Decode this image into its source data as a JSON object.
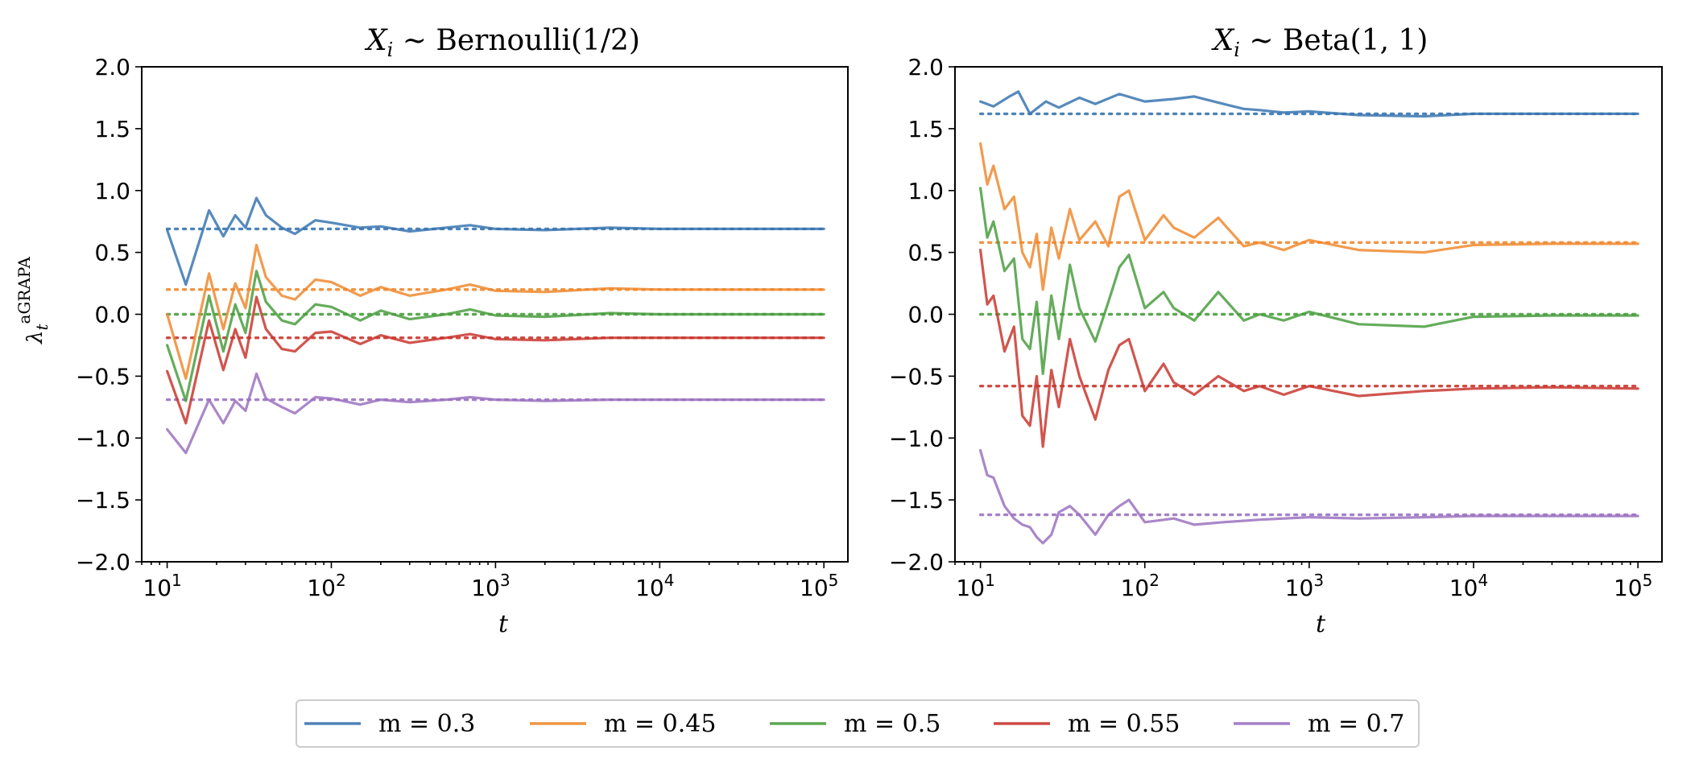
{
  "chart_data": [
    {
      "type": "line",
      "title_prefix": "X",
      "title_sub": "i",
      "title_rest": " ~  Bernoulli(1/2)",
      "xlabel": "t",
      "ylabel": "λ",
      "ylabel_sub": "t",
      "ylabel_sup": "aGRAPA",
      "xscale": "log",
      "xlim": [
        7,
        140000
      ],
      "ylim": [
        -2.0,
        2.0
      ],
      "yticks": [
        "2.0",
        "1.5",
        "1.0",
        "0.5",
        "0.0",
        "−0.5",
        "−1.0",
        "−1.5",
        "−2.0"
      ],
      "xticks": [
        {
          "base": "10",
          "exp": "1"
        },
        {
          "base": "10",
          "exp": "2"
        },
        {
          "base": "10",
          "exp": "3"
        },
        {
          "base": "10",
          "exp": "4"
        },
        {
          "base": "10",
          "exp": "5"
        }
      ],
      "grid": false,
      "series": [
        {
          "name": "m = 0.3",
          "color": "#3a75b0",
          "ref": 0.69,
          "x": [
            10,
            13,
            18,
            22,
            26,
            30,
            35,
            40,
            50,
            60,
            80,
            100,
            150,
            200,
            300,
            500,
            700,
            1000,
            2000,
            5000,
            10000,
            30000,
            100000
          ],
          "y": [
            0.68,
            0.24,
            0.84,
            0.63,
            0.8,
            0.7,
            0.94,
            0.8,
            0.7,
            0.65,
            0.76,
            0.74,
            0.7,
            0.71,
            0.67,
            0.7,
            0.72,
            0.69,
            0.68,
            0.7,
            0.69,
            0.69,
            0.69
          ]
        },
        {
          "name": "m = 0.45",
          "color": "#ef8a2f",
          "ref": 0.2,
          "x": [
            10,
            13,
            18,
            22,
            26,
            30,
            35,
            40,
            50,
            60,
            80,
            100,
            150,
            200,
            300,
            500,
            700,
            1000,
            2000,
            5000,
            10000,
            30000,
            100000
          ],
          "y": [
            0.0,
            -0.52,
            0.33,
            -0.12,
            0.25,
            0.05,
            0.56,
            0.3,
            0.15,
            0.12,
            0.28,
            0.26,
            0.15,
            0.22,
            0.15,
            0.2,
            0.24,
            0.19,
            0.18,
            0.21,
            0.2,
            0.2,
            0.2
          ]
        },
        {
          "name": "m = 0.5",
          "color": "#4a9e3f",
          "ref": 0.0,
          "x": [
            10,
            13,
            18,
            22,
            26,
            30,
            35,
            40,
            50,
            60,
            80,
            100,
            150,
            200,
            300,
            500,
            700,
            1000,
            2000,
            5000,
            10000,
            30000,
            100000
          ],
          "y": [
            -0.25,
            -0.7,
            0.15,
            -0.3,
            0.08,
            -0.15,
            0.35,
            0.1,
            -0.05,
            -0.08,
            0.08,
            0.06,
            -0.05,
            0.03,
            -0.04,
            0.0,
            0.04,
            -0.01,
            -0.02,
            0.01,
            0.0,
            0.0,
            0.0
          ]
        },
        {
          "name": "m = 0.55",
          "color": "#c9372f",
          "ref": -0.19,
          "x": [
            10,
            13,
            18,
            22,
            26,
            30,
            35,
            40,
            50,
            60,
            80,
            100,
            150,
            200,
            300,
            500,
            700,
            1000,
            2000,
            5000,
            10000,
            30000,
            100000
          ],
          "y": [
            -0.46,
            -0.88,
            -0.05,
            -0.45,
            -0.12,
            -0.35,
            0.14,
            -0.12,
            -0.28,
            -0.3,
            -0.15,
            -0.14,
            -0.24,
            -0.17,
            -0.23,
            -0.19,
            -0.16,
            -0.2,
            -0.21,
            -0.19,
            -0.19,
            -0.19,
            -0.19
          ]
        },
        {
          "name": "m = 0.7",
          "color": "#9b72c0",
          "ref": -0.69,
          "x": [
            10,
            13,
            18,
            22,
            26,
            30,
            35,
            40,
            50,
            60,
            80,
            100,
            150,
            200,
            300,
            500,
            700,
            1000,
            2000,
            5000,
            10000,
            30000,
            100000
          ],
          "y": [
            -0.93,
            -1.12,
            -0.69,
            -0.88,
            -0.7,
            -0.78,
            -0.48,
            -0.68,
            -0.75,
            -0.8,
            -0.67,
            -0.68,
            -0.73,
            -0.69,
            -0.71,
            -0.69,
            -0.67,
            -0.69,
            -0.7,
            -0.69,
            -0.69,
            -0.69,
            -0.69
          ]
        }
      ]
    },
    {
      "type": "line",
      "title_prefix": "X",
      "title_sub": "i",
      "title_rest": " ~  Beta(1, 1)",
      "xlabel": "t",
      "ylabel": "",
      "xscale": "log",
      "xlim": [
        7,
        140000
      ],
      "ylim": [
        -2.0,
        2.0
      ],
      "yticks": [
        "2.0",
        "1.5",
        "1.0",
        "0.5",
        "0.0",
        "−0.5",
        "−1.0",
        "−1.5",
        "−2.0"
      ],
      "xticks": [
        {
          "base": "10",
          "exp": "1"
        },
        {
          "base": "10",
          "exp": "2"
        },
        {
          "base": "10",
          "exp": "3"
        },
        {
          "base": "10",
          "exp": "4"
        },
        {
          "base": "10",
          "exp": "5"
        }
      ],
      "grid": false,
      "series": [
        {
          "name": "m = 0.3",
          "color": "#3a75b0",
          "ref": 1.62,
          "x": [
            10,
            12,
            15,
            17,
            20,
            25,
            30,
            40,
            50,
            70,
            100,
            150,
            200,
            300,
            400,
            500,
            700,
            1000,
            2000,
            5000,
            10000,
            30000,
            100000
          ],
          "y": [
            1.72,
            1.68,
            1.76,
            1.8,
            1.62,
            1.72,
            1.67,
            1.75,
            1.7,
            1.78,
            1.72,
            1.74,
            1.76,
            1.7,
            1.66,
            1.65,
            1.63,
            1.64,
            1.61,
            1.6,
            1.62,
            1.62,
            1.62
          ]
        },
        {
          "name": "m = 0.45",
          "color": "#ef8a2f",
          "ref": 0.58,
          "x": [
            10,
            11,
            12,
            14,
            16,
            18,
            20,
            22,
            24,
            27,
            30,
            35,
            40,
            50,
            60,
            70,
            80,
            100,
            130,
            150,
            200,
            280,
            400,
            500,
            700,
            1000,
            2000,
            5000,
            10000,
            30000,
            100000
          ],
          "y": [
            1.38,
            1.05,
            1.2,
            0.85,
            0.95,
            0.5,
            0.38,
            0.65,
            0.2,
            0.7,
            0.45,
            0.85,
            0.6,
            0.75,
            0.55,
            0.95,
            1.0,
            0.6,
            0.8,
            0.7,
            0.62,
            0.78,
            0.55,
            0.58,
            0.52,
            0.6,
            0.52,
            0.5,
            0.56,
            0.57,
            0.57
          ]
        },
        {
          "name": "m = 0.5",
          "color": "#4a9e3f",
          "ref": 0.0,
          "x": [
            10,
            11,
            12,
            14,
            16,
            18,
            20,
            22,
            24,
            27,
            30,
            35,
            40,
            50,
            60,
            70,
            80,
            100,
            130,
            150,
            200,
            280,
            400,
            500,
            700,
            1000,
            2000,
            5000,
            10000,
            30000,
            100000
          ],
          "y": [
            1.02,
            0.62,
            0.75,
            0.35,
            0.45,
            -0.2,
            -0.28,
            0.1,
            -0.48,
            0.15,
            -0.2,
            0.4,
            0.05,
            -0.22,
            0.1,
            0.38,
            0.48,
            0.05,
            0.18,
            0.05,
            -0.05,
            0.18,
            -0.05,
            0.0,
            -0.05,
            0.02,
            -0.08,
            -0.1,
            -0.02,
            -0.01,
            -0.01
          ]
        },
        {
          "name": "m = 0.55",
          "color": "#c9372f",
          "ref": -0.58,
          "x": [
            10,
            11,
            12,
            14,
            16,
            18,
            20,
            22,
            24,
            27,
            30,
            35,
            40,
            50,
            60,
            70,
            80,
            100,
            130,
            150,
            200,
            280,
            400,
            500,
            700,
            1000,
            2000,
            5000,
            10000,
            30000,
            100000
          ],
          "y": [
            0.52,
            0.08,
            0.15,
            -0.3,
            -0.1,
            -0.82,
            -0.9,
            -0.5,
            -1.07,
            -0.45,
            -0.75,
            -0.2,
            -0.5,
            -0.85,
            -0.45,
            -0.25,
            -0.2,
            -0.62,
            -0.4,
            -0.55,
            -0.65,
            -0.5,
            -0.62,
            -0.58,
            -0.65,
            -0.58,
            -0.66,
            -0.62,
            -0.6,
            -0.59,
            -0.6
          ]
        },
        {
          "name": "m = 0.7",
          "color": "#9b72c0",
          "ref": -1.62,
          "x": [
            10,
            11,
            12,
            14,
            16,
            18,
            20,
            22,
            24,
            27,
            30,
            35,
            40,
            50,
            60,
            70,
            80,
            100,
            150,
            200,
            300,
            500,
            1000,
            2000,
            5000,
            10000,
            30000,
            100000
          ],
          "y": [
            -1.1,
            -1.3,
            -1.32,
            -1.55,
            -1.65,
            -1.7,
            -1.72,
            -1.8,
            -1.85,
            -1.78,
            -1.6,
            -1.55,
            -1.62,
            -1.78,
            -1.62,
            -1.55,
            -1.5,
            -1.68,
            -1.65,
            -1.7,
            -1.68,
            -1.66,
            -1.64,
            -1.65,
            -1.64,
            -1.63,
            -1.63,
            -1.63
          ]
        }
      ]
    }
  ],
  "legend": {
    "placement": "bottom-center",
    "entries": [
      {
        "label": "m = 0.3",
        "color": "#3a75b0"
      },
      {
        "label": "m = 0.45",
        "color": "#ef8a2f"
      },
      {
        "label": "m = 0.5",
        "color": "#4a9e3f"
      },
      {
        "label": "m = 0.55",
        "color": "#c9372f"
      },
      {
        "label": "m = 0.7",
        "color": "#9b72c0"
      }
    ]
  }
}
